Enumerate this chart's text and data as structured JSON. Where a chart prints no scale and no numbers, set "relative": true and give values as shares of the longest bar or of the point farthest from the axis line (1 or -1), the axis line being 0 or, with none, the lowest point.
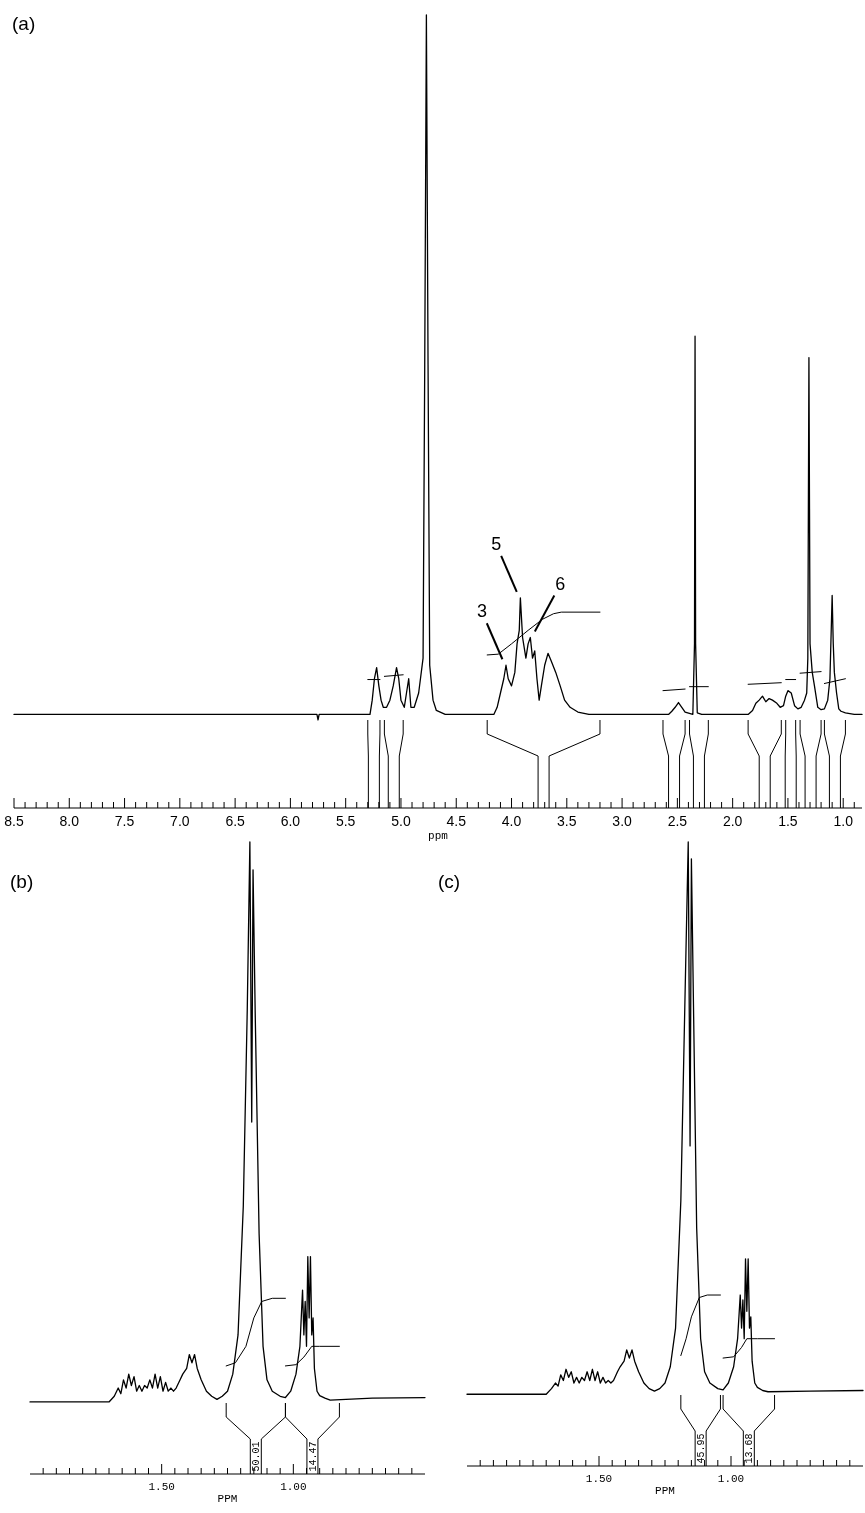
{
  "chart_data": [
    {
      "type": "line",
      "title": "(a)",
      "xlabel": "ppm",
      "relative": true,
      "xlim": [
        8.5,
        0.83
      ],
      "xticks": [
        {
          "value": 8.5,
          "label": "8.5"
        },
        {
          "value": 8,
          "label": "8.0"
        },
        {
          "value": 7.5,
          "label": "7.5"
        },
        {
          "value": 7,
          "label": "7.0"
        },
        {
          "value": 6.5,
          "label": "6.5"
        },
        {
          "value": 6,
          "label": "6.0"
        },
        {
          "value": 5.5,
          "label": "5.5"
        },
        {
          "value": 5,
          "label": "5.0"
        },
        {
          "value": 4.5,
          "label": "4.5"
        },
        {
          "value": 4,
          "label": "4.0"
        },
        {
          "value": 3.5,
          "label": "3.5"
        },
        {
          "value": 3,
          "label": "3.0"
        },
        {
          "value": 2.5,
          "label": "2.5"
        },
        {
          "value": 2,
          "label": "2.0"
        },
        {
          "value": 1.5,
          "label": "1.5"
        },
        {
          "value": 1,
          "label": "1.0"
        },
        {
          "value": 8.4,
          "label": null
        },
        {
          "value": 8.3,
          "label": null
        },
        {
          "value": 8.2,
          "label": null
        },
        {
          "value": 8.1,
          "label": null
        },
        {
          "value": 7.9,
          "label": null
        },
        {
          "value": 7.8,
          "label": null
        },
        {
          "value": 7.7,
          "label": null
        },
        {
          "value": 7.6,
          "label": null
        },
        {
          "value": 7.4,
          "label": null
        },
        {
          "value": 7.3,
          "label": null
        },
        {
          "value": 7.2,
          "label": null
        },
        {
          "value": 7.1,
          "label": null
        },
        {
          "value": 6.9,
          "label": null
        },
        {
          "value": 6.8,
          "label": null
        },
        {
          "value": 6.7,
          "label": null
        },
        {
          "value": 6.6,
          "label": null
        },
        {
          "value": 6.4,
          "label": null
        },
        {
          "value": 6.3,
          "label": null
        },
        {
          "value": 6.2,
          "label": null
        },
        {
          "value": 6.1,
          "label": null
        },
        {
          "value": 5.9,
          "label": null
        },
        {
          "value": 5.8,
          "label": null
        },
        {
          "value": 5.7,
          "label": null
        },
        {
          "value": 5.6,
          "label": null
        },
        {
          "value": 5.4,
          "label": null
        },
        {
          "value": 5.3,
          "label": null
        },
        {
          "value": 5.2,
          "label": null
        },
        {
          "value": 5.1,
          "label": null
        },
        {
          "value": 4.9,
          "label": null
        },
        {
          "value": 4.8,
          "label": null
        },
        {
          "value": 4.7,
          "label": null
        },
        {
          "value": 4.6,
          "label": null
        },
        {
          "value": 4.4,
          "label": null
        },
        {
          "value": 4.3,
          "label": null
        },
        {
          "value": 4.2,
          "label": null
        },
        {
          "value": 4.1,
          "label": null
        },
        {
          "value": 3.9,
          "label": null
        },
        {
          "value": 3.8,
          "label": null
        },
        {
          "value": 3.7,
          "label": null
        },
        {
          "value": 3.6,
          "label": null
        },
        {
          "value": 3.4,
          "label": null
        },
        {
          "value": 3.3,
          "label": null
        },
        {
          "value": 3.2,
          "label": null
        },
        {
          "value": 3.1,
          "label": null
        },
        {
          "value": 2.9,
          "label": null
        },
        {
          "value": 2.8,
          "label": null
        },
        {
          "value": 2.7,
          "label": null
        },
        {
          "value": 2.6,
          "label": null
        },
        {
          "value": 2.4,
          "label": null
        },
        {
          "value": 2.3,
          "label": null
        },
        {
          "value": 2.2,
          "label": null
        },
        {
          "value": 2.1,
          "label": null
        },
        {
          "value": 1.9,
          "label": null
        },
        {
          "value": 1.8,
          "label": null
        },
        {
          "value": 1.7,
          "label": null
        },
        {
          "value": 1.6,
          "label": null
        },
        {
          "value": 1.4,
          "label": null
        },
        {
          "value": 1.3,
          "label": null
        },
        {
          "value": 1.2,
          "label": null
        },
        {
          "value": 1.1,
          "label": null
        },
        {
          "value": 0.9,
          "label": null
        }
      ],
      "series": [
        {
          "color": "#000000",
          "x": [
            8.5,
            5.76,
            5.75,
            5.74,
            5.28,
            5.26,
            5.24,
            5.22,
            5.2,
            5.18,
            5.16,
            5.13,
            5.1,
            5.07,
            5.04,
            5.02,
            5.0,
            4.97,
            4.95,
            4.93,
            4.91,
            4.88,
            4.84,
            4.8,
            4.785,
            4.77,
            4.755,
            4.74,
            4.71,
            4.68,
            4.6,
            4.16,
            4.13,
            4.1,
            4.07,
            4.05,
            4.03,
            4.0,
            3.97,
            3.95,
            3.93,
            3.92,
            3.9,
            3.87,
            3.85,
            3.83,
            3.81,
            3.79,
            3.77,
            3.75,
            3.73,
            3.7,
            3.67,
            3.64,
            3.6,
            3.56,
            3.52,
            3.47,
            3.4,
            3.3,
            2.58,
            2.55,
            2.52,
            2.49,
            2.46,
            2.43,
            2.36,
            2.345,
            2.34,
            2.335,
            2.32,
            2.28,
            1.86,
            1.82,
            1.79,
            1.76,
            1.73,
            1.7,
            1.67,
            1.64,
            1.6,
            1.57,
            1.54,
            1.52,
            1.5,
            1.47,
            1.44,
            1.41,
            1.38,
            1.35,
            1.33,
            1.32,
            1.31,
            1.3,
            1.28,
            1.26,
            1.23,
            1.2,
            1.17,
            1.14,
            1.12,
            1.1,
            1.09,
            1.08,
            1.06,
            1.04,
            1.02,
            0.98,
            0.9,
            0.83
          ],
          "values": [
            0.118,
            0.118,
            0.111,
            0.118,
            0.118,
            0.136,
            0.163,
            0.177,
            0.154,
            0.136,
            0.127,
            0.127,
            0.136,
            0.154,
            0.177,
            0.163,
            0.136,
            0.127,
            0.145,
            0.163,
            0.127,
            0.127,
            0.145,
            0.189,
            0.559,
            1,
            0.559,
            0.18,
            0.136,
            0.123,
            0.118,
            0.118,
            0.127,
            0.145,
            0.163,
            0.18,
            0.163,
            0.154,
            0.171,
            0.207,
            0.224,
            0.265,
            0.215,
            0.189,
            0.207,
            0.215,
            0.189,
            0.198,
            0.163,
            0.136,
            0.154,
            0.18,
            0.195,
            0.185,
            0.171,
            0.154,
            0.136,
            0.127,
            0.121,
            0.118,
            0.118,
            0.122,
            0.127,
            0.133,
            0.127,
            0.121,
            0.118,
            0.207,
            0.595,
            0.207,
            0.12,
            0.118,
            0.118,
            0.123,
            0.132,
            0.136,
            0.141,
            0.134,
            0.138,
            0.136,
            0.132,
            0.127,
            0.129,
            0.141,
            0.148,
            0.145,
            0.129,
            0.125,
            0.127,
            0.136,
            0.145,
            0.189,
            0.568,
            0.207,
            0.171,
            0.154,
            0.127,
            0.124,
            0.125,
            0.136,
            0.163,
            0.268,
            0.207,
            0.171,
            0.145,
            0.125,
            0.122,
            0.12,
            0.118,
            0.118
          ]
        },
        {
          "color": "#000000",
          "x": [
            5.3,
            5.19
          ],
          "values": [
            0.162,
            0.162
          ]
        },
        {
          "color": "#000000",
          "x": [
            5.15,
            4.98
          ],
          "values": [
            0.166,
            0.168
          ]
        },
        {
          "color": "#000000",
          "x": [
            4.22,
            4.12,
            4.0,
            3.85,
            3.72,
            3.62,
            3.55,
            3.2
          ],
          "values": [
            0.193,
            0.194,
            0.207,
            0.224,
            0.238,
            0.245,
            0.247,
            0.247
          ]
        },
        {
          "color": "#000000",
          "x": [
            2.63,
            2.43
          ],
          "values": [
            0.148,
            0.15
          ]
        },
        {
          "color": "#000000",
          "x": [
            2.39,
            2.22
          ],
          "values": [
            0.153,
            0.153
          ]
        },
        {
          "color": "#000000",
          "x": [
            1.86,
            1.56
          ],
          "values": [
            0.156,
            0.158
          ]
        },
        {
          "color": "#000000",
          "x": [
            1.52,
            1.43
          ],
          "values": [
            0.162,
            0.162
          ]
        },
        {
          "color": "#000000",
          "x": [
            1.39,
            1.2
          ],
          "values": [
            0.17,
            0.172
          ]
        },
        {
          "color": "#000000",
          "x": [
            1.17,
            0.98
          ],
          "values": [
            0.157,
            0.163
          ]
        }
      ],
      "annotations": [
        {
          "text": "3",
          "x": 4.05,
          "y": 0.18
        },
        {
          "text": "5",
          "x": 3.92,
          "y": 0.265
        },
        {
          "text": "6",
          "x": 3.83,
          "y": 0.215
        }
      ]
    },
    {
      "type": "line",
      "title": "(b)",
      "xlabel": "PPM",
      "relative": true,
      "xlim": [
        2.0,
        0.5
      ],
      "xticks": [
        {
          "value": 1.5,
          "label": "1.50"
        },
        {
          "value": 1,
          "label": "1.00"
        },
        {
          "value": 1.95,
          "label": null
        },
        {
          "value": 1.9,
          "label": null
        },
        {
          "value": 1.85,
          "label": null
        },
        {
          "value": 1.8,
          "label": null
        },
        {
          "value": 1.75,
          "label": null
        },
        {
          "value": 1.7,
          "label": null
        },
        {
          "value": 1.65,
          "label": null
        },
        {
          "value": 1.6,
          "label": null
        },
        {
          "value": 1.55,
          "label": null
        },
        {
          "value": 1.45,
          "label": null
        },
        {
          "value": 1.4,
          "label": null
        },
        {
          "value": 1.35,
          "label": null
        },
        {
          "value": 1.3,
          "label": null
        },
        {
          "value": 1.25,
          "label": null
        },
        {
          "value": 1.2,
          "label": null
        },
        {
          "value": 1.15,
          "label": null
        },
        {
          "value": 1.1,
          "label": null
        },
        {
          "value": 1.05,
          "label": null
        },
        {
          "value": 0.95,
          "label": null
        },
        {
          "value": 0.9,
          "label": null
        },
        {
          "value": 0.85,
          "label": null
        },
        {
          "value": 0.8,
          "label": null
        },
        {
          "value": 0.75,
          "label": null
        },
        {
          "value": 0.7,
          "label": null
        },
        {
          "value": 0.65,
          "label": null
        },
        {
          "value": 0.6,
          "label": null
        },
        {
          "value": 0.55,
          "label": null
        }
      ],
      "series": [
        {
          "color": "#000000",
          "x": [
            2.0,
            1.7,
            1.68,
            1.665,
            1.655,
            1.645,
            1.635,
            1.625,
            1.615,
            1.605,
            1.595,
            1.585,
            1.575,
            1.565,
            1.555,
            1.545,
            1.535,
            1.525,
            1.515,
            1.505,
            1.495,
            1.485,
            1.475,
            1.465,
            1.455,
            1.445,
            1.43,
            1.42,
            1.405,
            1.395,
            1.385,
            1.375,
            1.365,
            1.35,
            1.33,
            1.31,
            1.29,
            1.27,
            1.25,
            1.23,
            1.21,
            1.19,
            1.175,
            1.165,
            1.158,
            1.153,
            1.145,
            1.13,
            1.115,
            1.1,
            1.08,
            1.05,
            1.03,
            1.01,
            0.99,
            0.975,
            0.965,
            0.96,
            0.955,
            0.95,
            0.945,
            0.94,
            0.935,
            0.93,
            0.925,
            0.92,
            0.91,
            0.9,
            0.88,
            0.86,
            0.7,
            0.5
          ],
          "values": [
            0.114,
            0.114,
            0.123,
            0.136,
            0.127,
            0.149,
            0.136,
            0.158,
            0.14,
            0.154,
            0.131,
            0.14,
            0.131,
            0.14,
            0.136,
            0.149,
            0.136,
            0.158,
            0.136,
            0.154,
            0.131,
            0.145,
            0.131,
            0.136,
            0.131,
            0.136,
            0.149,
            0.158,
            0.167,
            0.189,
            0.176,
            0.189,
            0.167,
            0.149,
            0.131,
            0.123,
            0.118,
            0.123,
            0.131,
            0.158,
            0.22,
            0.424,
            0.734,
            1,
            0.557,
            0.956,
            0.734,
            0.38,
            0.202,
            0.149,
            0.131,
            0.123,
            0.121,
            0.131,
            0.158,
            0.202,
            0.291,
            0.22,
            0.273,
            0.202,
            0.344,
            0.247,
            0.344,
            0.22,
            0.247,
            0.167,
            0.131,
            0.124,
            0.12,
            0.117,
            0.12,
            0.121
          ]
        },
        {
          "color": "#000000",
          "x": [
            1.255,
            1.22,
            1.18,
            1.15,
            1.12,
            1.08,
            1.03
          ],
          "values": [
            0.171,
            0.176,
            0.202,
            0.247,
            0.273,
            0.278,
            0.278
          ]
        },
        {
          "color": "#000000",
          "x": [
            1.03,
            0.99,
            0.96,
            0.93,
            0.9,
            0.825
          ],
          "values": [
            0.171,
            0.173,
            0.185,
            0.202,
            0.202,
            0.202
          ]
        }
      ],
      "annotations": [
        "50.01",
        "14.47"
      ]
    },
    {
      "type": "line",
      "title": "(c)",
      "xlabel": "PPM",
      "relative": true,
      "xlim": [
        2.0,
        0.5
      ],
      "xticks": [
        {
          "value": 1.5,
          "label": "1.50"
        },
        {
          "value": 1,
          "label": "1.00"
        },
        {
          "value": 1.95,
          "label": null
        },
        {
          "value": 1.9,
          "label": null
        },
        {
          "value": 1.85,
          "label": null
        },
        {
          "value": 1.8,
          "label": null
        },
        {
          "value": 1.75,
          "label": null
        },
        {
          "value": 1.7,
          "label": null
        },
        {
          "value": 1.65,
          "label": null
        },
        {
          "value": 1.6,
          "label": null
        },
        {
          "value": 1.55,
          "label": null
        },
        {
          "value": 1.45,
          "label": null
        },
        {
          "value": 1.4,
          "label": null
        },
        {
          "value": 1.35,
          "label": null
        },
        {
          "value": 1.3,
          "label": null
        },
        {
          "value": 1.25,
          "label": null
        },
        {
          "value": 1.2,
          "label": null
        },
        {
          "value": 1.15,
          "label": null
        },
        {
          "value": 1.1,
          "label": null
        },
        {
          "value": 1.05,
          "label": null
        },
        {
          "value": 0.95,
          "label": null
        },
        {
          "value": 0.9,
          "label": null
        },
        {
          "value": 0.85,
          "label": null
        },
        {
          "value": 0.8,
          "label": null
        },
        {
          "value": 0.75,
          "label": null
        },
        {
          "value": 0.7,
          "label": null
        },
        {
          "value": 0.65,
          "label": null
        },
        {
          "value": 0.6,
          "label": null
        },
        {
          "value": 0.55,
          "label": null
        }
      ],
      "series": [
        {
          "color": "#000000",
          "x": [
            2.0,
            1.7,
            1.68,
            1.665,
            1.655,
            1.645,
            1.635,
            1.625,
            1.615,
            1.605,
            1.595,
            1.585,
            1.575,
            1.565,
            1.555,
            1.545,
            1.535,
            1.525,
            1.515,
            1.505,
            1.495,
            1.485,
            1.475,
            1.465,
            1.455,
            1.445,
            1.43,
            1.42,
            1.405,
            1.395,
            1.385,
            1.375,
            1.365,
            1.35,
            1.33,
            1.31,
            1.29,
            1.27,
            1.25,
            1.23,
            1.21,
            1.19,
            1.175,
            1.162,
            1.155,
            1.15,
            1.142,
            1.13,
            1.115,
            1.1,
            1.08,
            1.05,
            1.03,
            1.01,
            0.99,
            0.975,
            0.965,
            0.96,
            0.955,
            0.95,
            0.945,
            0.94,
            0.935,
            0.93,
            0.925,
            0.92,
            0.91,
            0.9,
            0.88,
            0.86,
            0.7,
            0.5
          ],
          "values": [
            0.115,
            0.115,
            0.124,
            0.133,
            0.128,
            0.146,
            0.137,
            0.155,
            0.142,
            0.151,
            0.133,
            0.142,
            0.133,
            0.142,
            0.137,
            0.151,
            0.137,
            0.155,
            0.137,
            0.151,
            0.133,
            0.142,
            0.133,
            0.137,
            0.133,
            0.137,
            0.151,
            0.159,
            0.168,
            0.186,
            0.173,
            0.186,
            0.168,
            0.151,
            0.133,
            0.124,
            0.12,
            0.124,
            0.133,
            0.159,
            0.221,
            0.425,
            0.735,
            1,
            0.513,
            0.973,
            0.735,
            0.381,
            0.204,
            0.151,
            0.133,
            0.124,
            0.122,
            0.133,
            0.159,
            0.204,
            0.274,
            0.221,
            0.266,
            0.204,
            0.332,
            0.248,
            0.332,
            0.221,
            0.239,
            0.168,
            0.133,
            0.126,
            0.121,
            0.119,
            0.12,
            0.121
          ]
        },
        {
          "color": "#000000",
          "x": [
            1.19,
            1.17,
            1.15,
            1.12,
            1.09,
            1.04
          ],
          "values": [
            0.177,
            0.204,
            0.239,
            0.27,
            0.274,
            0.274
          ]
        },
        {
          "color": "#000000",
          "x": [
            1.03,
            0.99,
            0.96,
            0.94,
            0.9,
            0.835
          ],
          "values": [
            0.173,
            0.175,
            0.19,
            0.204,
            0.204,
            0.204
          ]
        }
      ],
      "annotations": [
        "45.95",
        "13.68"
      ]
    }
  ]
}
